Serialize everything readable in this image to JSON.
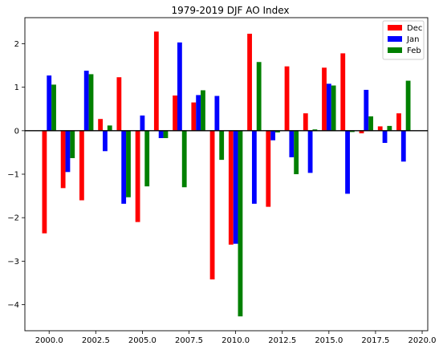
{
  "chart_data": {
    "type": "bar",
    "title": "1979-2019 DJF AO Index",
    "xlabel": "",
    "ylabel": "",
    "xlim": [
      1998.7,
      2020.3
    ],
    "ylim": [
      -4.6,
      2.6
    ],
    "xticks": [
      {
        "value": 2000.0,
        "label": "2000.0"
      },
      {
        "value": 2002.5,
        "label": "2002.5"
      },
      {
        "value": 2005.0,
        "label": "2005.0"
      },
      {
        "value": 2007.5,
        "label": "2007.5"
      },
      {
        "value": 2010.0,
        "label": "2010.0"
      },
      {
        "value": 2012.5,
        "label": "2012.5"
      },
      {
        "value": 2015.0,
        "label": "2015.0"
      },
      {
        "value": 2017.5,
        "label": "2017.5"
      },
      {
        "value": 2020.0,
        "label": "2020.0"
      }
    ],
    "yticks": [
      {
        "value": -4,
        "label": "−4"
      },
      {
        "value": -3,
        "label": "−3"
      },
      {
        "value": -2,
        "label": "−2"
      },
      {
        "value": -1,
        "label": "−1"
      },
      {
        "value": 0,
        "label": "0"
      },
      {
        "value": 1,
        "label": "1"
      },
      {
        "value": 2,
        "label": "2"
      }
    ],
    "grid": false,
    "legend_position": "top-right",
    "zero_line": true,
    "bar_width": 0.25,
    "x": [
      2000,
      2001,
      2002,
      2003,
      2004,
      2005,
      2006,
      2007,
      2008,
      2009,
      2010,
      2011,
      2012,
      2013,
      2014,
      2015,
      2016,
      2017,
      2018,
      2019
    ],
    "series": [
      {
        "name": "Dec",
        "color": "#ff0000",
        "offset": -0.25,
        "values": [
          -2.36,
          -1.32,
          -1.6,
          0.27,
          1.23,
          -2.1,
          2.28,
          0.81,
          0.65,
          -3.42,
          -2.62,
          2.23,
          -1.75,
          1.48,
          0.4,
          1.45,
          1.78,
          -0.06,
          0.1,
          0.4
        ]
      },
      {
        "name": "Jan",
        "color": "#0000ff",
        "offset": 0,
        "values": [
          1.27,
          -0.95,
          1.38,
          -0.47,
          -1.68,
          0.35,
          -0.17,
          2.03,
          0.82,
          0.8,
          -2.6,
          -1.68,
          -0.22,
          -0.61,
          -0.97,
          1.08,
          -1.45,
          0.94,
          -0.28,
          -0.71
        ]
      },
      {
        "name": "Feb",
        "color": "#008000",
        "offset": 0.25,
        "values": [
          1.06,
          -0.63,
          1.3,
          0.12,
          -1.53,
          -1.28,
          -0.17,
          -1.3,
          0.93,
          -0.67,
          -4.27,
          1.58,
          -0.04,
          -1.0,
          0.03,
          1.04,
          -0.03,
          0.33,
          0.11,
          1.15
        ]
      }
    ]
  }
}
